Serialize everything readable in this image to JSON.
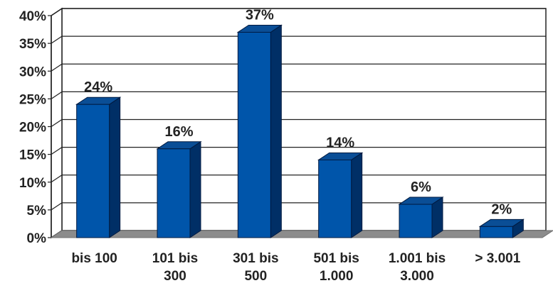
{
  "chart_data": {
    "type": "bar",
    "title": "",
    "xlabel": "",
    "ylabel": "",
    "categories": [
      [
        "bis 100"
      ],
      [
        "101 bis",
        "300"
      ],
      [
        "301 bis",
        "500"
      ],
      [
        "501 bis",
        "1.000"
      ],
      [
        "1.001 bis",
        "3.000"
      ],
      [
        "> 3.001"
      ]
    ],
    "values": [
      24,
      16,
      37,
      14,
      6,
      2
    ],
    "data_labels": [
      "24%",
      "16%",
      "37%",
      "14%",
      "6%",
      "2%"
    ],
    "ylim": [
      0,
      40
    ],
    "yticks": [
      0,
      5,
      10,
      15,
      20,
      25,
      30,
      35,
      40
    ],
    "ytick_labels": [
      "0%",
      "5%",
      "10%",
      "15%",
      "20%",
      "25%",
      "30%",
      "35%",
      "40%"
    ],
    "grid": true,
    "style": "3d-column",
    "colors": {
      "bar_front": "#0055AA",
      "bar_side": "#002F66",
      "bar_top": "#0A4E96",
      "floor": "#8C8C8C",
      "gridline": "#222222",
      "wall": "#ffffff"
    }
  }
}
